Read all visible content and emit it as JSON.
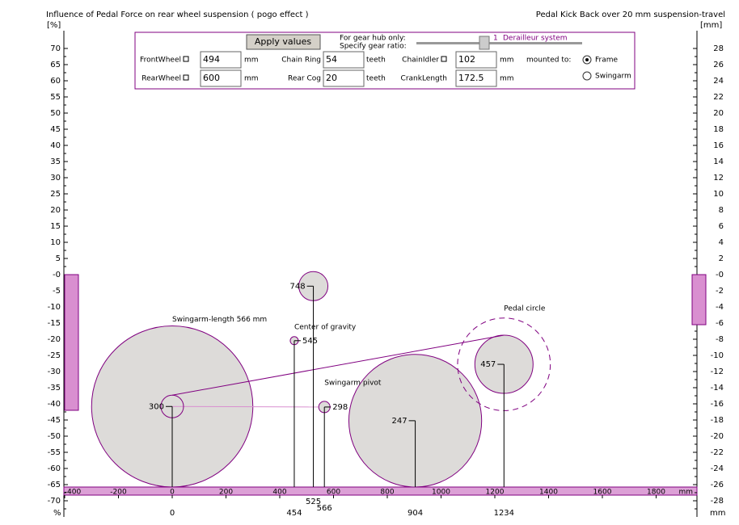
{
  "header": {
    "left_title": "Influence of Pedal Force on rear wheel suspension ( pogo effect )",
    "right_title": "Pedal Kick Back over 20 mm suspension-travel",
    "left_unit": "[%]",
    "right_unit": "[mm]",
    "left_bottom_unit": "%",
    "right_bottom_unit": "mm"
  },
  "controls": {
    "apply_button": "Apply values",
    "gear_note": [
      "For gear hub only:",
      "Specify gear ratio:"
    ],
    "gear_value": "1",
    "gear_system": "Derailleur system",
    "mounted_to": "mounted to:",
    "options": [
      "Frame",
      "Swingarm"
    ],
    "selected_option": 0,
    "fields": [
      {
        "label": "FrontWheel",
        "value": 494,
        "unit": "mm",
        "checkbox": true
      },
      {
        "label": "Chain Ring",
        "value": 54,
        "unit": "teeth",
        "checkbox": false
      },
      {
        "label": "ChainIdler",
        "value": 102,
        "unit": "mm",
        "checkbox": true
      },
      {
        "label": "RearWheel",
        "value": 600,
        "unit": "mm",
        "checkbox": true
      },
      {
        "label": "Rear Cog",
        "value": 20,
        "unit": "teeth",
        "checkbox": false
      },
      {
        "label": "CrankLength",
        "value": 172.5,
        "unit": "mm",
        "checkbox": false
      }
    ]
  },
  "axes": {
    "left_ticks": [
      70,
      65,
      60,
      55,
      50,
      45,
      40,
      35,
      30,
      25,
      20,
      15,
      10,
      5,
      {
        "value": 0,
        "label": "-0"
      },
      -5,
      -10,
      -15,
      -20,
      -25,
      -30,
      -35,
      -40,
      -45,
      -50,
      -55,
      -60,
      -65,
      -70
    ],
    "right_ticks": [
      28,
      26,
      24,
      22,
      20,
      18,
      16,
      14,
      12,
      10,
      8,
      6,
      4,
      2,
      {
        "value": 0,
        "label": "-0"
      },
      -2,
      -4,
      -6,
      -8,
      -10,
      -12,
      -14,
      -16,
      -18,
      -20,
      -22,
      -24,
      -26,
      -28
    ],
    "x_ticks": [
      -400,
      -200,
      0,
      200,
      400,
      600,
      800,
      1000,
      1200,
      1400,
      1600,
      1800
    ],
    "x_unit": "mm"
  },
  "bars": {
    "pogo_effect": -42,
    "kick_back": -6.2
  },
  "markers": [
    {
      "x": 0,
      "height": 300,
      "caption": "Swingarm-length 566 mm"
    },
    {
      "x": 454,
      "height": 545,
      "caption": "Center of gravity"
    },
    {
      "x": 525,
      "height": 748
    },
    {
      "x": 566,
      "height": 298,
      "caption": "Swingarm pivot"
    },
    {
      "x": 904,
      "height": 247
    },
    {
      "x": 1234,
      "height": 457,
      "caption": "Pedal circle"
    }
  ]
}
